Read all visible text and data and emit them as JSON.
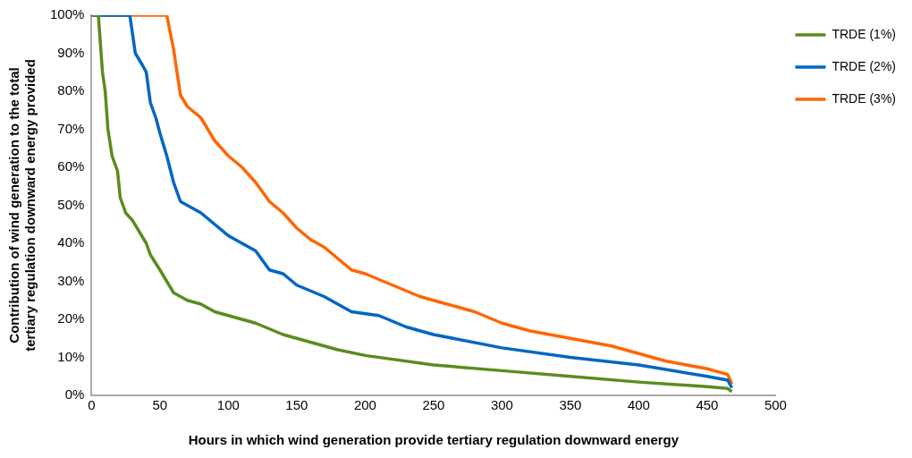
{
  "chart_data": {
    "type": "line",
    "xlabel": "Hours in which wind generation provide tertiary regulation downward energy",
    "ylabel": "Contribution of wind generation to the total tertiary regulation downward energy provided",
    "xlim": [
      0,
      500
    ],
    "xticks": [
      0,
      50,
      100,
      150,
      200,
      250,
      300,
      350,
      400,
      450,
      500
    ],
    "ylim": [
      0,
      100
    ],
    "yticks": [
      {
        "value": 0,
        "label": "0%"
      },
      {
        "value": 10,
        "label": "10%"
      },
      {
        "value": 20,
        "label": "20%"
      },
      {
        "value": 30,
        "label": "30%"
      },
      {
        "value": 40,
        "label": "40%"
      },
      {
        "value": 50,
        "label": "50%"
      },
      {
        "value": 60,
        "label": "60%"
      },
      {
        "value": 70,
        "label": "70%"
      },
      {
        "value": 80,
        "label": "80%"
      },
      {
        "value": 90,
        "label": "90%"
      },
      {
        "value": 100,
        "label": "100%"
      }
    ],
    "grid": false,
    "legend": "top right",
    "marker": "none",
    "line_style": "solid",
    "series": [
      {
        "name": "TRDE (1%)",
        "color": "#5b8c1e",
        "x": [
          0,
          5,
          7,
          8,
          10,
          12,
          15,
          19,
          21,
          25,
          30,
          35,
          40,
          43,
          50,
          60,
          70,
          80,
          90,
          100,
          120,
          140,
          160,
          180,
          200,
          250,
          300,
          350,
          400,
          450,
          465,
          468
        ],
        "values": [
          100,
          100,
          90,
          85,
          80,
          70,
          63,
          59,
          52,
          48,
          46,
          43,
          40,
          37,
          33,
          27,
          25,
          24,
          22,
          21,
          19,
          16,
          14,
          12,
          10.5,
          8,
          6.5,
          5,
          3.5,
          2.3,
          1.8,
          1
        ]
      },
      {
        "name": "TRDE (2%)",
        "color": "#0066c4",
        "x": [
          0,
          28,
          30,
          32,
          37,
          40,
          43,
          47,
          50,
          55,
          60,
          65,
          70,
          80,
          90,
          100,
          120,
          130,
          140,
          150,
          170,
          190,
          210,
          230,
          250,
          300,
          350,
          400,
          450,
          465,
          468
        ],
        "values": [
          100,
          100,
          95,
          90,
          87,
          85,
          77,
          73,
          69,
          63,
          56,
          51,
          50,
          48,
          45,
          42,
          38,
          33,
          32,
          29,
          26,
          22,
          21,
          18,
          16,
          12.5,
          10,
          8,
          5,
          4,
          2
        ]
      },
      {
        "name": "TRDE (3%)",
        "color": "#ff6600",
        "x": [
          0,
          55,
          60,
          65,
          70,
          80,
          90,
          100,
          110,
          120,
          130,
          140,
          150,
          160,
          170,
          180,
          190,
          200,
          220,
          240,
          260,
          280,
          300,
          320,
          350,
          380,
          400,
          420,
          450,
          465,
          468
        ],
        "values": [
          100,
          100,
          91,
          79,
          76,
          73,
          67,
          63,
          60,
          56,
          51,
          48,
          44,
          41,
          39,
          36,
          33,
          32,
          29,
          26,
          24,
          22,
          19,
          17,
          15,
          13,
          11,
          9,
          7,
          5.5,
          3
        ]
      }
    ]
  }
}
